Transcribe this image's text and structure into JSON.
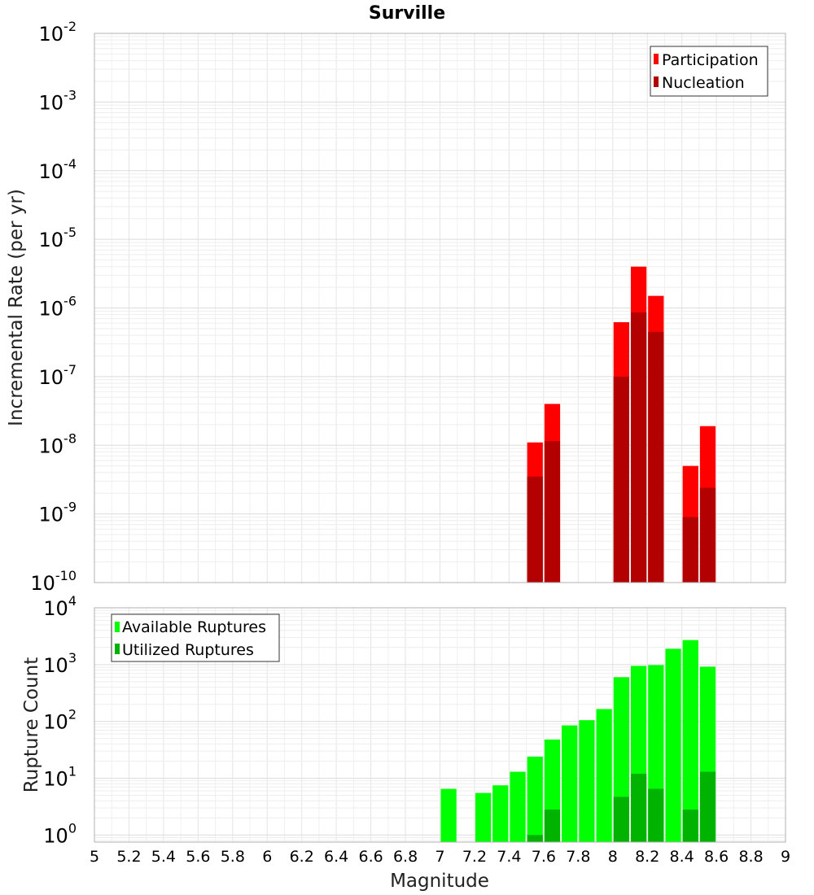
{
  "chart_data": [
    {
      "type": "bar",
      "title": "Surville",
      "xlabel": "",
      "ylabel": "Incremental Rate (per yr)",
      "yscale": "log",
      "ylim": [
        1e-10,
        0.01
      ],
      "xlim": [
        5,
        9
      ],
      "x_ticks": [
        "5",
        "5.2",
        "5.4",
        "5.6",
        "5.8",
        "6",
        "6.2",
        "6.4",
        "6.6",
        "6.8",
        "7",
        "7.2",
        "7.4",
        "7.6",
        "7.8",
        "8",
        "8.2",
        "8.4",
        "8.6",
        "8.8",
        "9"
      ],
      "y_tick_bases": [
        "10",
        "10",
        "10",
        "10",
        "10",
        "10",
        "10",
        "10",
        "10"
      ],
      "y_tick_exponents": [
        "-10",
        "-9",
        "-8",
        "-7",
        "-6",
        "-5",
        "-4",
        "-3",
        "-2"
      ],
      "grid": true,
      "legend_position": "top-right",
      "series": [
        {
          "name": "Participation",
          "color": "#ff0000",
          "x": [
            7.55,
            7.65,
            8.05,
            8.15,
            8.25,
            8.45,
            8.55
          ],
          "values": [
            1.1e-08,
            4e-08,
            6.2e-07,
            4e-06,
            1.5e-06,
            5e-09,
            1.9e-08
          ]
        },
        {
          "name": "Nucleation",
          "color": "#b30000",
          "x": [
            7.55,
            7.65,
            8.05,
            8.15,
            8.25,
            8.45,
            8.55
          ],
          "values": [
            3.5e-09,
            1.15e-08,
            1e-07,
            8.6e-07,
            4.5e-07,
            9e-10,
            2.4e-09
          ]
        }
      ]
    },
    {
      "type": "bar",
      "title": "",
      "xlabel": "Magnitude",
      "ylabel": "Rupture Count",
      "yscale": "log",
      "ylim": [
        0.75,
        10000
      ],
      "xlim": [
        5,
        9
      ],
      "x_ticks": [
        "5",
        "5.2",
        "5.4",
        "5.6",
        "5.8",
        "6",
        "6.2",
        "6.4",
        "6.6",
        "6.8",
        "7",
        "7.2",
        "7.4",
        "7.6",
        "7.8",
        "8",
        "8.2",
        "8.4",
        "8.6",
        "8.8",
        "9"
      ],
      "y_tick_bases": [
        "10",
        "10",
        "10",
        "10",
        "10"
      ],
      "y_tick_exponents": [
        "0",
        "1",
        "2",
        "3",
        "4"
      ],
      "grid": true,
      "legend_position": "top-left",
      "series": [
        {
          "name": "Available Ruptures",
          "color": "#00ff00",
          "x": [
            7.05,
            7.25,
            7.35,
            7.45,
            7.55,
            7.65,
            7.75,
            7.85,
            7.95,
            8.05,
            8.15,
            8.25,
            8.35,
            8.45,
            8.55
          ],
          "values": [
            6.5,
            5.5,
            7.5,
            13,
            24,
            48,
            85,
            105,
            165,
            600,
            950,
            980,
            1900,
            2700,
            920
          ]
        },
        {
          "name": "Utilized Ruptures",
          "color": "#00b300",
          "x": [
            7.55,
            7.65,
            8.05,
            8.15,
            8.25,
            8.45,
            8.55
          ],
          "values": [
            1,
            2.8,
            4.7,
            12,
            6.5,
            2.8,
            13
          ]
        }
      ]
    }
  ]
}
